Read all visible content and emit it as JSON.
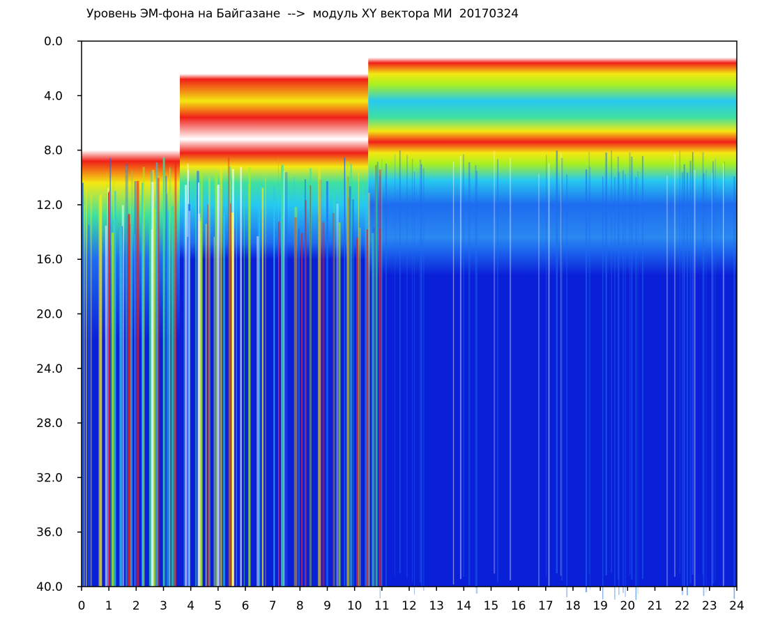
{
  "chart_data": {
    "type": "heatmap",
    "title": "Уровень ЭМ-фона на Байгазане  -->  модуль XY вектора МИ  20170324",
    "xlabel": "",
    "ylabel": "",
    "xlim": [
      0,
      24
    ],
    "ylim": [
      0,
      40
    ],
    "y_inverted": true,
    "x_ticks": [
      "0",
      "1",
      "2",
      "3",
      "4",
      "5",
      "6",
      "7",
      "8",
      "9",
      "10",
      "11",
      "12",
      "13",
      "14",
      "15",
      "16",
      "17",
      "18",
      "19",
      "20",
      "21",
      "22",
      "23",
      "24"
    ],
    "y_ticks": [
      "0.0",
      "4.0",
      "8.0",
      "12.0",
      "16.0",
      "20.0",
      "24.0",
      "28.0",
      "32.0",
      "36.0",
      "40.0"
    ],
    "colormap": [
      "#0a1fd8",
      "#1e6cf0",
      "#27c9f0",
      "#3fe0a0",
      "#a8f020",
      "#f4e812",
      "#f02018"
    ],
    "background_color": "#0a1fd8",
    "regimes": [
      {
        "x_start": 0,
        "x_end": 3.6,
        "top": 8.5,
        "description": "intermittent vertical streaks"
      },
      {
        "x_start": 3.6,
        "x_end": 10.5,
        "top": 2.5,
        "description": "streaks with band 3–7"
      },
      {
        "x_start": 10.5,
        "x_end": 24,
        "top": 1.5,
        "description": "continuous band 1.5–8, cyan 9–14"
      }
    ]
  }
}
